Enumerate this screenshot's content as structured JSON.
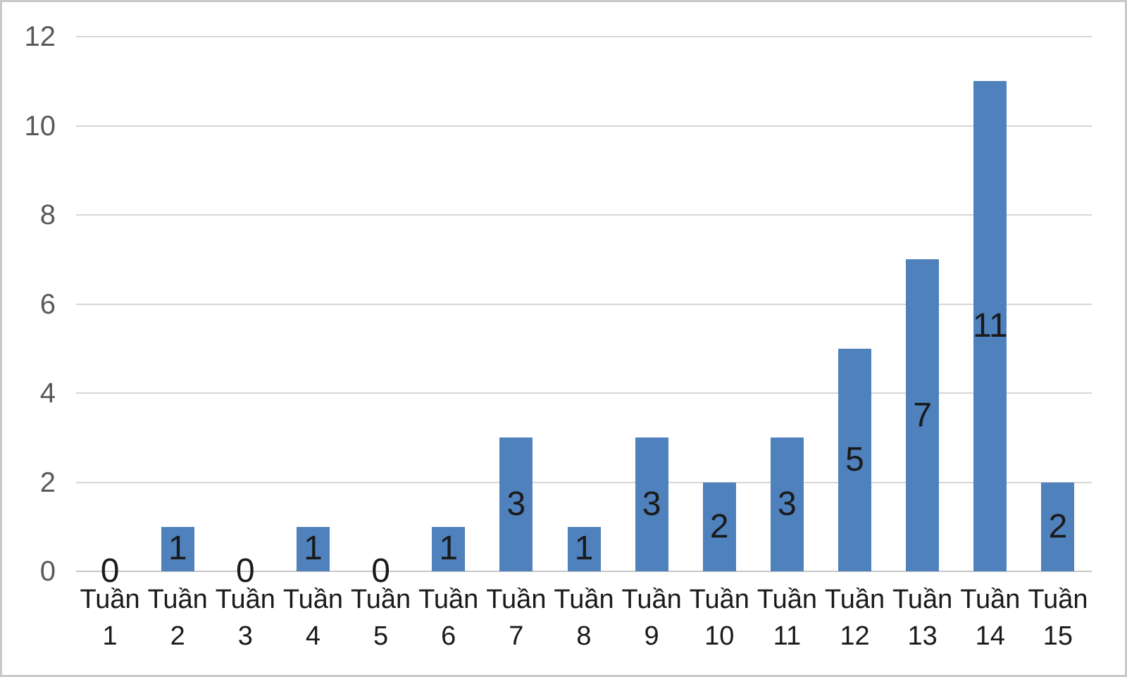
{
  "chart_data": {
    "type": "bar",
    "categories": [
      "Tuần 1",
      "Tuần 2",
      "Tuần 3",
      "Tuần 4",
      "Tuần 5",
      "Tuần 6",
      "Tuần 7",
      "Tuần 8",
      "Tuần 9",
      "Tuần 10",
      "Tuần 11",
      "Tuần 12",
      "Tuần 13",
      "Tuần 14",
      "Tuần 15"
    ],
    "values": [
      0,
      1,
      0,
      1,
      0,
      1,
      3,
      1,
      3,
      2,
      3,
      5,
      7,
      11,
      2
    ],
    "data_labels": [
      "0",
      "1",
      "0",
      "1",
      "0",
      "1",
      "3",
      "1",
      "3",
      "2",
      "3",
      "5",
      "7",
      "11",
      "2"
    ],
    "title": "",
    "xlabel": "",
    "ylabel": "",
    "ylim": [
      0,
      12
    ],
    "yticks": [
      0,
      2,
      4,
      6,
      8,
      10,
      12
    ],
    "grid": true,
    "legend_position": "none",
    "data_label_position": "center",
    "colors": {
      "bar": "#4F81BD",
      "data_label": "#1a1a1a",
      "axis_tick_label": "#595959",
      "x_axis_label": "#1a1a1a",
      "gridline": "#d6d6d6",
      "axis_line": "#c6c6c6",
      "background": "#ffffff",
      "frame_border": "#c9c9c9"
    }
  }
}
